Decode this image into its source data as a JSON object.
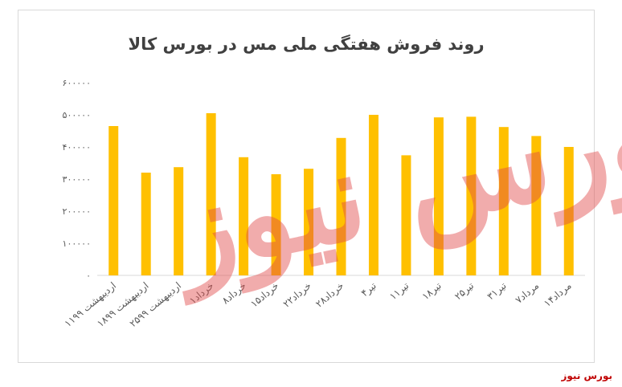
{
  "chart_data": {
    "type": "bar",
    "title": "روند فروش هفتگی ملی مس در بورس کالا",
    "categories": [
      "۱۱اردیبهشت ۹۹",
      "۱۸اردیبهشت ۹۹",
      "۲۵اردیبهشت ۹۹",
      "۱خرداد",
      "۸خرداد",
      "۱۵خرداد",
      "۲۲خرداد",
      "۲۸خرداد",
      "۴تیر",
      "۱۱تیر",
      "۱۸تیر",
      "۲۵تیر",
      "۳۱تیر",
      "۷مرداد",
      "۱۴مرداد"
    ],
    "values": [
      465000,
      320000,
      337000,
      505000,
      368000,
      315000,
      332000,
      428000,
      500000,
      374000,
      492000,
      494000,
      462000,
      434000,
      400000
    ],
    "ylim": [
      0,
      600000
    ],
    "yticks": [
      0,
      100000,
      200000,
      300000,
      400000,
      500000,
      600000
    ],
    "ytick_labels": [
      "۰",
      "۱۰۰۰۰۰",
      "۲۰۰۰۰۰",
      "۳۰۰۰۰۰",
      "۴۰۰۰۰۰",
      "۵۰۰۰۰۰",
      "۶۰۰۰۰۰"
    ],
    "grid": false,
    "bar_color": "#ffc000"
  },
  "watermark": "بورس نیوز",
  "source": "بورس نیوز"
}
